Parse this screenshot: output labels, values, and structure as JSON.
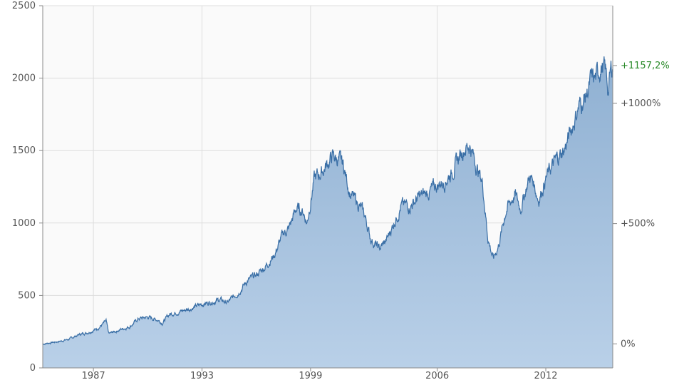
{
  "chart_data": {
    "type": "area",
    "x_start": 1984.2,
    "x_end": 2015.7,
    "xlim": [
      1984.2,
      2015.7
    ],
    "ylim": [
      0,
      2500
    ],
    "yticks": [
      0,
      500,
      1000,
      1500,
      2000,
      2500
    ],
    "xticks": [
      1987,
      1993,
      1999,
      2006,
      2012
    ],
    "xtick_labels": [
      "1987",
      "1993",
      "1999",
      "2006",
      "2012"
    ],
    "grid": true,
    "x": [
      1984.2,
      1984.7,
      1985.2,
      1985.7,
      1986.2,
      1986.7,
      1987.2,
      1987.7,
      1987.85,
      1988.5,
      1989.0,
      1989.5,
      1990.0,
      1990.6,
      1990.8,
      1991.2,
      1991.8,
      1992.5,
      1993.0,
      1993.5,
      1994.0,
      1994.4,
      1995.0,
      1995.5,
      1996.0,
      1996.5,
      1997.0,
      1997.5,
      1997.8,
      1998.2,
      1998.6,
      1998.8,
      1999.2,
      1999.6,
      2000.0,
      2000.2,
      2000.5,
      2000.8,
      2001.2,
      2001.7,
      2002.0,
      2002.3,
      2002.6,
      2002.8,
      2003.2,
      2003.6,
      2004.0,
      2004.5,
      2005.0,
      2005.5,
      2006.0,
      2006.4,
      2006.8,
      2007.2,
      2007.5,
      2007.8,
      2008.2,
      2008.5,
      2008.8,
      2009.1,
      2009.4,
      2009.8,
      2010.3,
      2010.6,
      2011.1,
      2011.3,
      2011.6,
      2012.0,
      2012.3,
      2012.6,
      2013.0,
      2013.4,
      2013.8,
      2014.2,
      2014.5,
      2014.8,
      2015.0,
      2015.15,
      2015.3,
      2015.45,
      2015.6,
      2015.7
    ],
    "values": [
      165,
      175,
      185,
      200,
      230,
      245,
      270,
      320,
      235,
      265,
      285,
      340,
      350,
      330,
      310,
      370,
      390,
      415,
      440,
      455,
      470,
      450,
      520,
      600,
      640,
      700,
      780,
      930,
      960,
      1100,
      1080,
      1000,
      1300,
      1350,
      1420,
      1460,
      1440,
      1400,
      1200,
      1120,
      1050,
      900,
      850,
      820,
      880,
      1000,
      1120,
      1120,
      1180,
      1210,
      1260,
      1290,
      1350,
      1450,
      1520,
      1540,
      1380,
      1280,
      900,
      750,
      850,
      1090,
      1200,
      1100,
      1320,
      1290,
      1160,
      1310,
      1380,
      1440,
      1500,
      1640,
      1800,
      1870,
      1980,
      2000,
      2080,
      2070,
      2040,
      1920,
      2050,
      2080
    ],
    "right_axis": {
      "base_value": 166,
      "ticks": [
        0,
        500,
        1000
      ],
      "tick_labels": [
        "0%",
        "+500%",
        "+1000%"
      ],
      "current_label": "+1157,2%",
      "current_value": 2087
    },
    "colors": {
      "line": "#3a6fa6",
      "fill_top": "#8fb0d2",
      "fill_bottom": "#b9d0e8",
      "grid": "#dddddd",
      "axis": "#8a8a8a",
      "current": "#2a8a2a"
    }
  }
}
